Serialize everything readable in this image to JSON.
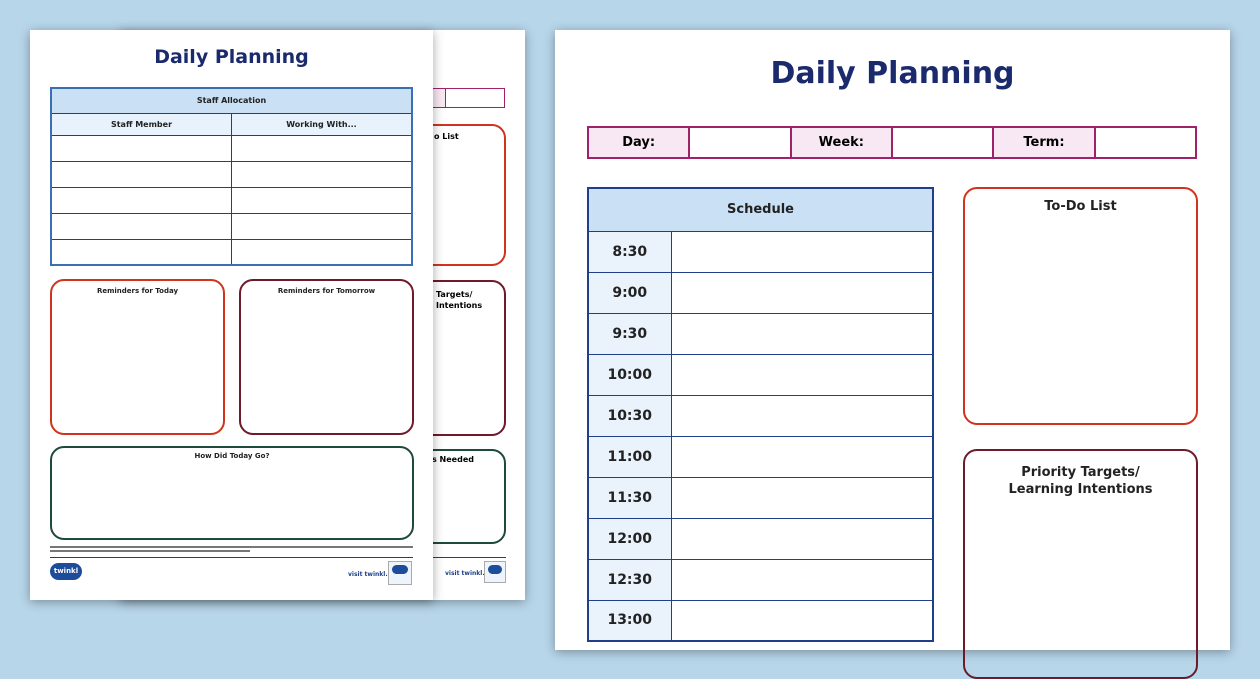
{
  "back_page": {
    "todo_fragment": "o List",
    "priority_fragment_1": "Targets/",
    "priority_fragment_2": "Intentions",
    "resources_fragment": "s Needed",
    "footer_link": "visit twinkl.com"
  },
  "left_page": {
    "title": "Daily Planning",
    "staff_table": {
      "header": "Staff Allocation",
      "columns": [
        "Staff Member",
        "Working With..."
      ],
      "rows": [
        [
          "",
          ""
        ],
        [
          "",
          ""
        ],
        [
          "",
          ""
        ],
        [
          "",
          ""
        ],
        [
          "",
          ""
        ]
      ]
    },
    "reminders_today": "Reminders for Today",
    "reminders_tomorrow": "Reminders for Tomorrow",
    "how_did_today_go": "How Did Today Go?",
    "logo": "twinkl",
    "footer_link": "visit twinkl.com"
  },
  "right_page": {
    "title": "Daily Planning",
    "info_row": {
      "day": "Day:",
      "week": "Week:",
      "term": "Term:"
    },
    "schedule": {
      "header": "Schedule",
      "times": [
        "8:30",
        "9:00",
        "9:30",
        "10:00",
        "10:30",
        "11:00",
        "11:30",
        "12:00",
        "12:30",
        "13:00"
      ]
    },
    "todo_list": "To-Do List",
    "priority_line1": "Priority Targets/",
    "priority_line2": "Learning Intentions"
  },
  "colors": {
    "background": "#b7d6ea",
    "title": "#1a2a6c",
    "table_header": "#c9e0f5",
    "table_border": "#1f3f8a",
    "info_label_bg": "#f8e8f3",
    "info_border": "#a0206a",
    "todo_border": "#d0341c",
    "priority_border": "#6d1a2a",
    "review_border": "#1d4a3a"
  }
}
